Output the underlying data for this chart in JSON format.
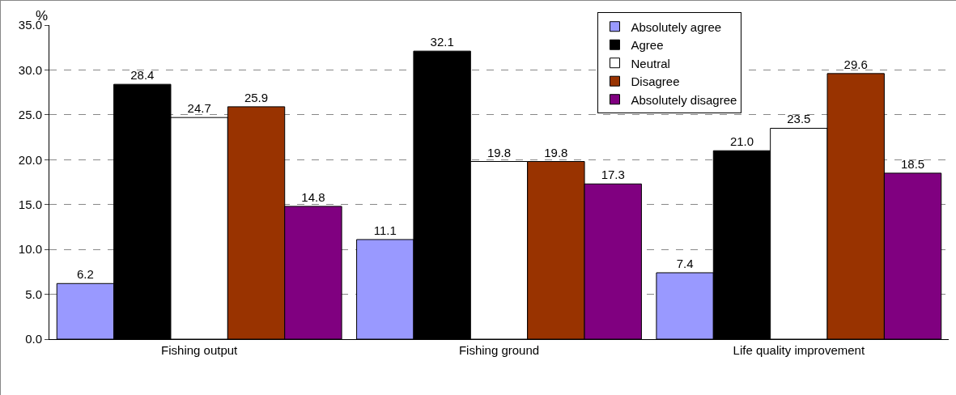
{
  "chart_data": {
    "type": "bar",
    "ylabel": "%",
    "categories": [
      "Fishing output",
      "Fishing ground",
      "Life quality improvement"
    ],
    "series": [
      {
        "name": "Absolutely agree",
        "color": "#9999ff",
        "values": [
          6.2,
          11.1,
          7.4
        ],
        "value_labels": [
          "6.2",
          "11.1",
          "7.4"
        ]
      },
      {
        "name": "Agree",
        "color": "#000000",
        "values": [
          28.4,
          32.1,
          21.0
        ],
        "value_labels": [
          "28.4",
          "32.1",
          "21.0"
        ]
      },
      {
        "name": "Neutral",
        "color": "#ffffff",
        "values": [
          24.7,
          19.8,
          23.5
        ],
        "value_labels": [
          "24.7",
          "19.8",
          "23.5"
        ]
      },
      {
        "name": "Disagree",
        "color": "#993300",
        "values": [
          25.9,
          19.8,
          29.6
        ],
        "value_labels": [
          "25.9",
          "19.8",
          "29.6"
        ]
      },
      {
        "name": "Absolutely disagree",
        "color": "#800080",
        "values": [
          14.8,
          17.3,
          18.5
        ],
        "value_labels": [
          "14.8",
          "17.3",
          "18.5"
        ]
      }
    ],
    "ylim": [
      0,
      35
    ],
    "yticks": [
      {
        "value": 0,
        "label": "0.0"
      },
      {
        "value": 5,
        "label": "5.0"
      },
      {
        "value": 10,
        "label": "10.0"
      },
      {
        "value": 15,
        "label": "15.0"
      },
      {
        "value": 20,
        "label": "20.0"
      },
      {
        "value": 25,
        "label": "25.0"
      },
      {
        "value": 30,
        "label": "30.0"
      },
      {
        "value": 35,
        "label": "35.0"
      }
    ],
    "grid": "y",
    "legend": "top right"
  }
}
